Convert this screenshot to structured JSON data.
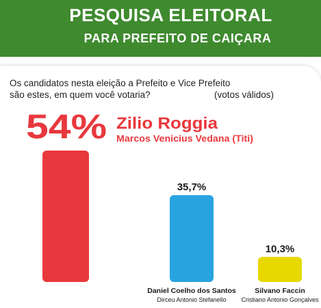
{
  "header": {
    "title": "PESQUISA ELEITORAL",
    "subtitle": "PARA PREFEITO DE CAIÇARA"
  },
  "question": {
    "line1": "Os candidatos nesta eleição a Prefeito e Vice Prefeito",
    "line2": "são estes, em quem você votaria?",
    "note": "(votos válidos)"
  },
  "colors": {
    "header_green": "#3f8a2f",
    "candidate_1": "#e8383d",
    "candidate_2": "#27a4e0",
    "candidate_3": "#e7d900"
  },
  "chart_data": {
    "type": "bar",
    "unit": "%",
    "categories": [
      "Zilio Roggia",
      "Daniel Coelho dos Santos",
      "Silvano Faccin"
    ],
    "values": [
      54,
      35.7,
      10.3
    ],
    "value_labels": [
      "54%",
      "35,7%",
      "10,3%"
    ],
    "vice_candidates": [
      "Marcos Venicius Vedana (Titi)",
      "Dirceu Antonio Stefanello",
      "Cristiano Antonio Gonçalves"
    ],
    "colors": [
      "#e8383d",
      "#27a4e0",
      "#e7d900"
    ]
  }
}
